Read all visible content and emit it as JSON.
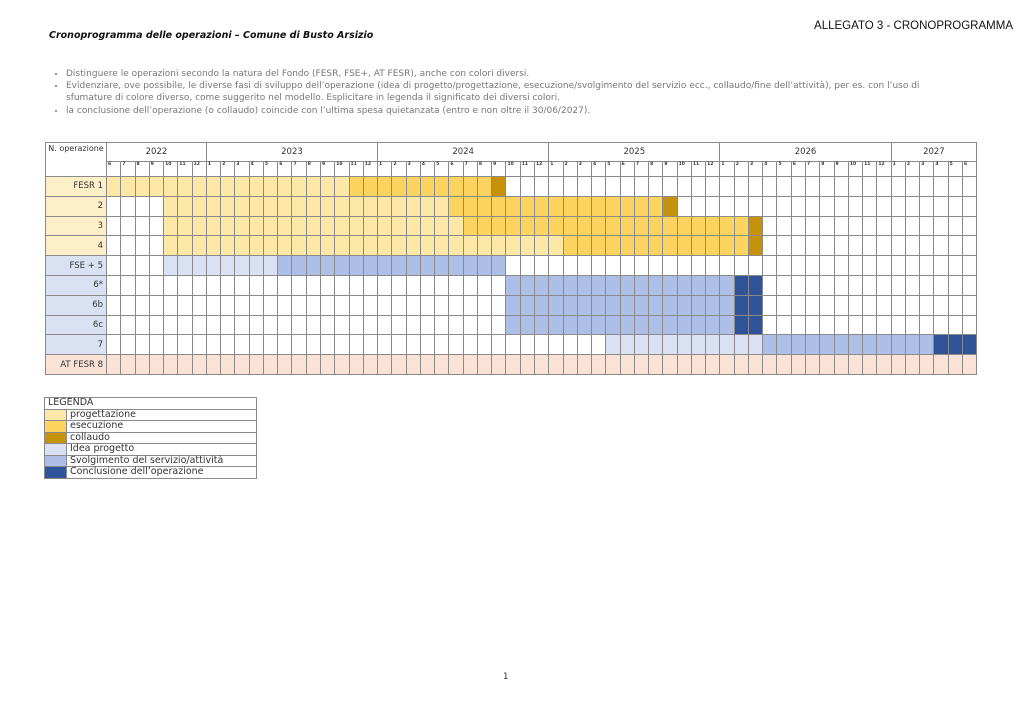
{
  "header": {
    "allegato": "ALLEGATO 3 - CRONOPROGRAMMA",
    "title": "Cronoprogramma delle operazioni – Comune di Busto Arsizio"
  },
  "notes": [
    "Distinguere le operazioni secondo la natura del Fondo (FESR, FSE+, AT FESR), anche con colori diversi.",
    "Evidenziare, ove possibile, le diverse fasi di sviluppo dell’operazione (idea di progetto/progettazione, esecuzione/svolgimento del servizio ecc., collaudo/fine dell’attività), per es. con l’uso di sfumature di colore diverso, come suggerito nel modello. Esplicitare in legenda il significato dei diversi colori.",
    "la conclusione dell’operazione (o collaudo) coincide con l’ultima spesa quietanzata (entro e non oltre il 30/06/2027)."
  ],
  "colors": {
    "progettazione": "#fde8a8",
    "esecuzione": "#fcd45f",
    "collaudo": "#c4920b",
    "idea": "#d9e1f3",
    "svolgimento": "#adbfe6",
    "conclusione": "#2e5399",
    "fesr_label": "#fdf0c8",
    "fse_label": "#d9e1f3",
    "at": "#fbe2d6"
  },
  "chart_data": {
    "type": "table",
    "corner_label": "N. operazione",
    "years": [
      {
        "label": "2022",
        "months": [
          "6",
          "7",
          "8",
          "9",
          "10",
          "11",
          "12"
        ]
      },
      {
        "label": "2023",
        "months": [
          "1",
          "2",
          "3",
          "4",
          "5",
          "6",
          "7",
          "8",
          "9",
          "10",
          "11",
          "12"
        ]
      },
      {
        "label": "2024",
        "months": [
          "1",
          "2",
          "3",
          "4",
          "5",
          "6",
          "7",
          "8",
          "9",
          "10",
          "11",
          "12"
        ]
      },
      {
        "label": "2025",
        "months": [
          "1",
          "2",
          "3",
          "4",
          "5",
          "6",
          "7",
          "8",
          "9",
          "10",
          "11",
          "12"
        ]
      },
      {
        "label": "2026",
        "months": [
          "1",
          "2",
          "3",
          "4",
          "5",
          "6",
          "7",
          "8",
          "9",
          "10",
          "11",
          "12"
        ]
      },
      {
        "label": "2027",
        "months": [
          "1",
          "2",
          "3",
          "4",
          "5",
          "6"
        ]
      }
    ],
    "rows": [
      {
        "label": "FESR 1",
        "fund": "fesr",
        "phases": [
          [
            "progettazione",
            "2022-06",
            "2023-10"
          ],
          [
            "esecuzione",
            "2023-11",
            "2024-08"
          ],
          [
            "collaudo",
            "2024-09",
            "2024-09"
          ]
        ]
      },
      {
        "label": "2",
        "fund": "fesr",
        "phases": [
          [
            "progettazione",
            "2022-10",
            "2024-05"
          ],
          [
            "esecuzione",
            "2024-06",
            "2025-08"
          ],
          [
            "collaudo",
            "2025-09",
            "2025-09"
          ]
        ]
      },
      {
        "label": "3",
        "fund": "fesr",
        "phases": [
          [
            "progettazione",
            "2022-10",
            "2024-06"
          ],
          [
            "esecuzione",
            "2024-07",
            "2026-02"
          ],
          [
            "collaudo",
            "2026-03",
            "2026-03"
          ]
        ]
      },
      {
        "label": "4",
        "fund": "fesr",
        "phases": [
          [
            "progettazione",
            "2022-10",
            "2025-01"
          ],
          [
            "esecuzione",
            "2025-02",
            "2026-02"
          ],
          [
            "collaudo",
            "2026-03",
            "2026-03"
          ]
        ]
      },
      {
        "label": "FSE + 5",
        "fund": "fse",
        "phases": [
          [
            "idea",
            "2022-10",
            "2023-05"
          ],
          [
            "svolgimento",
            "2023-06",
            "2024-09"
          ]
        ]
      },
      {
        "label": "6*",
        "fund": "fse",
        "phases": [
          [
            "svolgimento",
            "2024-10",
            "2026-01"
          ],
          [
            "conclusione",
            "2026-02",
            "2026-03"
          ]
        ]
      },
      {
        "label": "6b",
        "fund": "fse",
        "phases": [
          [
            "svolgimento",
            "2024-10",
            "2026-01"
          ],
          [
            "conclusione",
            "2026-02",
            "2026-03"
          ]
        ]
      },
      {
        "label": "6c",
        "fund": "fse",
        "phases": [
          [
            "svolgimento",
            "2024-10",
            "2026-01"
          ],
          [
            "conclusione",
            "2026-02",
            "2026-03"
          ]
        ]
      },
      {
        "label": "7",
        "fund": "fse",
        "phases": [
          [
            "idea",
            "2025-05",
            "2026-03"
          ],
          [
            "svolgimento",
            "2026-04",
            "2027-03"
          ],
          [
            "conclusione",
            "2027-04",
            "2027-06"
          ]
        ]
      },
      {
        "label": "AT FESR 8",
        "fund": "at",
        "phases": [
          [
            "at",
            "2022-06",
            "2027-06"
          ]
        ]
      }
    ]
  },
  "legend": {
    "title": "LEGENDA",
    "items": [
      {
        "key": "progettazione",
        "label": "progettazione"
      },
      {
        "key": "esecuzione",
        "label": "esecuzione"
      },
      {
        "key": "collaudo",
        "label": "collaudo"
      },
      {
        "key": "idea",
        "label": "Idea progetto"
      },
      {
        "key": "svolgimento",
        "label": "Svolgimento del servizio/attività"
      },
      {
        "key": "conclusione",
        "label": "Conclusione dell’operazione"
      }
    ]
  },
  "page_number": "1"
}
